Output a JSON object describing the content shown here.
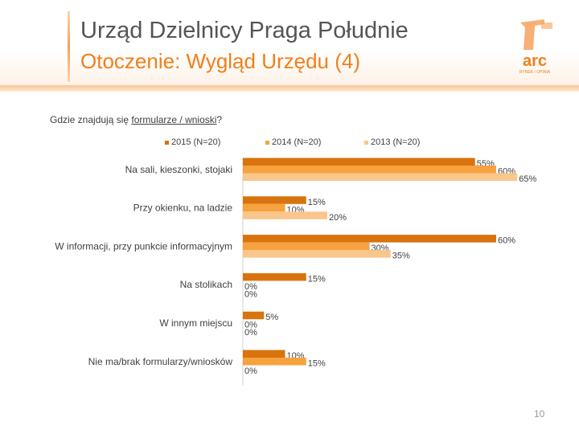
{
  "header": {
    "title": "Urząd Dzielnicy Praga Południe",
    "subtitle": "Otoczenie: Wygląd Urzędu (4)",
    "logo_text": "arc",
    "logo_tagline": "RYNEK I OPINIA"
  },
  "colors": {
    "accent": "#f07f1c",
    "s2015": "#d9730d",
    "s2014": "#f7a23f",
    "s2013": "#f9c68b",
    "title": "#555555"
  },
  "page_number": "10",
  "chart_data": {
    "type": "bar",
    "orientation": "horizontal",
    "title": "",
    "question_prefix": "Gdzie znajdują się ",
    "question_underlined": "formularze / wnioski",
    "question_suffix": "?",
    "categories": [
      "Na sali, kieszonki, stojaki",
      "Przy okienku, na ladzie",
      "W informacji, przy punkcie informacyjnym",
      "Na stolikach",
      "W innym miejscu",
      "Nie ma/brak formularzy/wniosków"
    ],
    "series": [
      {
        "name": "2015 (N=20)",
        "values": [
          55,
          15,
          60,
          15,
          5,
          10
        ]
      },
      {
        "name": "2014 (N=20)",
        "values": [
          60,
          10,
          30,
          0,
          0,
          15
        ]
      },
      {
        "name": "2013 (N=20)",
        "values": [
          65,
          20,
          35,
          0,
          0,
          0
        ]
      }
    ],
    "value_suffix": "%",
    "xlim": [
      0,
      100
    ],
    "xlabel": "",
    "ylabel": "",
    "grid": false,
    "legend": "top"
  }
}
